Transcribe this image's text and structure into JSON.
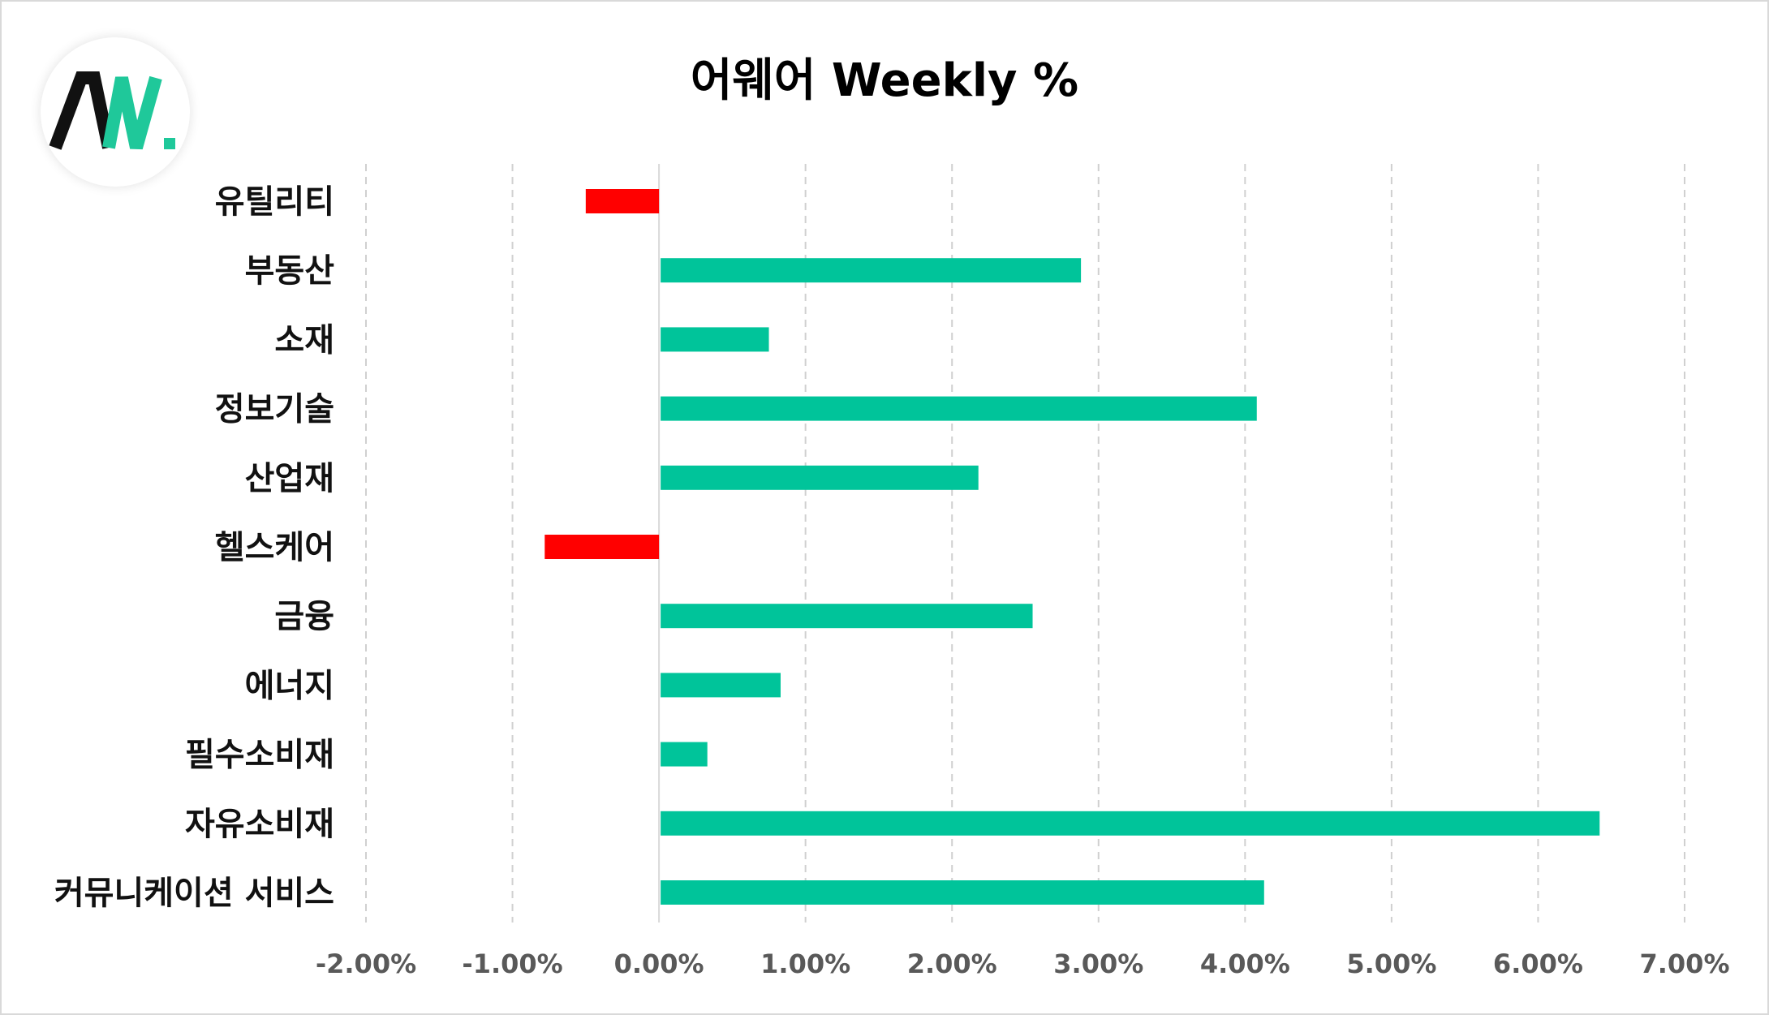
{
  "chart_data": {
    "type": "bar",
    "orientation": "horizontal",
    "title": "어웨어 Weekly %",
    "categories": [
      "유틸리티",
      "부동산",
      "소재",
      "정보기술",
      "산업재",
      "헬스케어",
      "금융",
      "에너지",
      "필수소비재",
      "자유소비재",
      "커뮤니케이션 서비스"
    ],
    "values": [
      -0.5,
      2.88,
      0.75,
      4.08,
      2.18,
      -0.78,
      2.55,
      0.83,
      0.33,
      6.42,
      4.13
    ],
    "xlim": [
      -2,
      7
    ],
    "xticks": [
      -2,
      -1,
      0,
      1,
      2,
      3,
      4,
      5,
      6,
      7
    ],
    "xtick_labels": [
      "-2.00%",
      "-1.00%",
      "0.00%",
      "1.00%",
      "2.00%",
      "3.00%",
      "4.00%",
      "5.00%",
      "6.00%",
      "7.00%"
    ],
    "xlabel": "",
    "ylabel": "",
    "grid": "vertical dashed",
    "legend": "none",
    "colors": {
      "positive": "#00C49A",
      "negative": "#FF0000",
      "grid": "#D0D0D0",
      "zero_line": "#D9D9D9"
    }
  },
  "logo": {
    "text": "AW.",
    "colors": {
      "dark": "#111111",
      "accent": "#1FC89A"
    }
  }
}
